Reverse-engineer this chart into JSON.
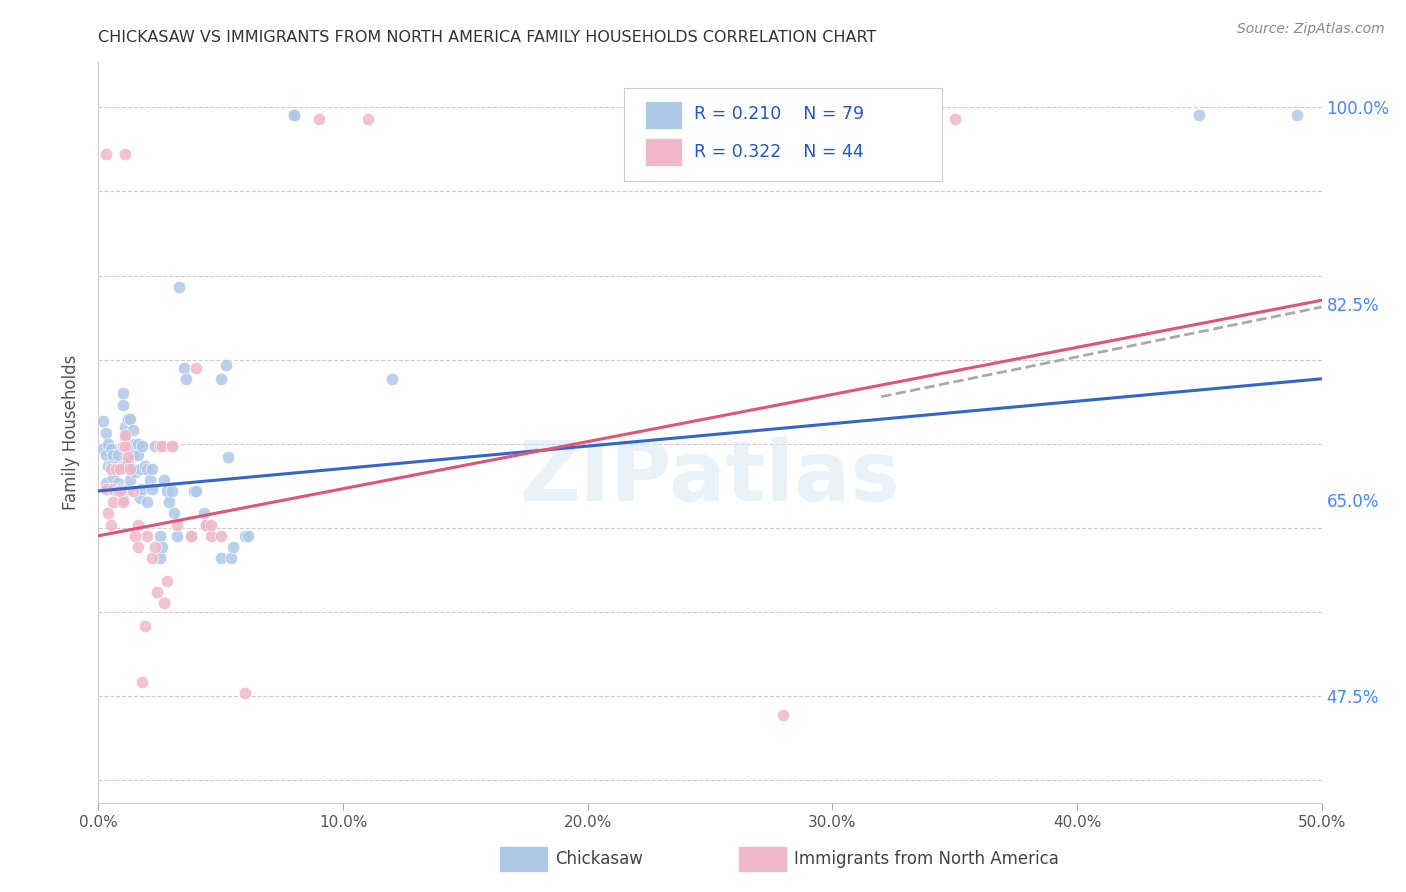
{
  "title": "CHICKASAW VS IMMIGRANTS FROM NORTH AMERICA FAMILY HOUSEHOLDS CORRELATION CHART",
  "source": "Source: ZipAtlas.com",
  "xlabel_ticks": [
    "0.0%",
    "10.0%",
    "20.0%",
    "30.0%",
    "40.0%",
    "50.0%"
  ],
  "ylabel": "Family Households",
  "xlim": [
    0.0,
    0.5
  ],
  "ylim": [
    0.38,
    1.04
  ],
  "right_yticks_labels": [
    "100.0%",
    "82.5%",
    "65.0%",
    "47.5%"
  ],
  "right_yticks_positions": [
    1.0,
    0.825,
    0.65,
    0.475
  ],
  "blue_color": "#aec8e8",
  "pink_color": "#f0b8c8",
  "marker_size": 80,
  "trendline_blue_color": "#3366cc",
  "trendline_pink_color": "#e05575",
  "trendline_gray_color": "#aaaaaa",
  "background_color": "#ffffff",
  "grid_color": "#cccccc",
  "blue_scatter": [
    [
      0.002,
      0.695
    ],
    [
      0.002,
      0.72
    ],
    [
      0.003,
      0.665
    ],
    [
      0.003,
      0.69
    ],
    [
      0.003,
      0.71
    ],
    [
      0.004,
      0.66
    ],
    [
      0.004,
      0.68
    ],
    [
      0.004,
      0.7
    ],
    [
      0.005,
      0.66
    ],
    [
      0.005,
      0.68
    ],
    [
      0.005,
      0.695
    ],
    [
      0.006,
      0.67
    ],
    [
      0.006,
      0.69
    ],
    [
      0.007,
      0.66
    ],
    [
      0.007,
      0.68
    ],
    [
      0.008,
      0.665
    ],
    [
      0.008,
      0.69
    ],
    [
      0.009,
      0.66
    ],
    [
      0.01,
      0.65
    ],
    [
      0.01,
      0.68
    ],
    [
      0.01,
      0.735
    ],
    [
      0.01,
      0.745
    ],
    [
      0.011,
      0.68
    ],
    [
      0.011,
      0.705
    ],
    [
      0.011,
      0.715
    ],
    [
      0.012,
      0.66
    ],
    [
      0.012,
      0.685
    ],
    [
      0.012,
      0.695
    ],
    [
      0.012,
      0.722
    ],
    [
      0.013,
      0.668
    ],
    [
      0.013,
      0.7
    ],
    [
      0.013,
      0.722
    ],
    [
      0.014,
      0.678
    ],
    [
      0.014,
      0.69
    ],
    [
      0.014,
      0.712
    ],
    [
      0.015,
      0.675
    ],
    [
      0.015,
      0.7
    ],
    [
      0.016,
      0.69
    ],
    [
      0.016,
      0.7
    ],
    [
      0.017,
      0.652
    ],
    [
      0.017,
      0.678
    ],
    [
      0.018,
      0.66
    ],
    [
      0.018,
      0.698
    ],
    [
      0.019,
      0.68
    ],
    [
      0.02,
      0.648
    ],
    [
      0.02,
      0.678
    ],
    [
      0.021,
      0.668
    ],
    [
      0.022,
      0.66
    ],
    [
      0.022,
      0.678
    ],
    [
      0.023,
      0.698
    ],
    [
      0.025,
      0.598
    ],
    [
      0.025,
      0.618
    ],
    [
      0.026,
      0.608
    ],
    [
      0.027,
      0.668
    ],
    [
      0.028,
      0.658
    ],
    [
      0.029,
      0.648
    ],
    [
      0.03,
      0.658
    ],
    [
      0.031,
      0.638
    ],
    [
      0.032,
      0.618
    ],
    [
      0.033,
      0.84
    ],
    [
      0.035,
      0.768
    ],
    [
      0.036,
      0.758
    ],
    [
      0.038,
      0.618
    ],
    [
      0.039,
      0.658
    ],
    [
      0.04,
      0.658
    ],
    [
      0.043,
      0.638
    ],
    [
      0.044,
      0.628
    ],
    [
      0.05,
      0.758
    ],
    [
      0.05,
      0.598
    ],
    [
      0.052,
      0.77
    ],
    [
      0.053,
      0.688
    ],
    [
      0.054,
      0.598
    ],
    [
      0.055,
      0.608
    ],
    [
      0.06,
      0.618
    ],
    [
      0.061,
      0.618
    ],
    [
      0.08,
      0.993
    ],
    [
      0.08,
      0.993
    ],
    [
      0.12,
      0.758
    ],
    [
      0.45,
      0.993
    ],
    [
      0.49,
      0.993
    ]
  ],
  "pink_scatter": [
    [
      0.003,
      0.958
    ],
    [
      0.011,
      0.958
    ],
    [
      0.003,
      0.66
    ],
    [
      0.004,
      0.638
    ],
    [
      0.005,
      0.628
    ],
    [
      0.005,
      0.678
    ],
    [
      0.006,
      0.648
    ],
    [
      0.006,
      0.66
    ],
    [
      0.007,
      0.678
    ],
    [
      0.008,
      0.658
    ],
    [
      0.009,
      0.658
    ],
    [
      0.009,
      0.678
    ],
    [
      0.01,
      0.648
    ],
    [
      0.01,
      0.698
    ],
    [
      0.011,
      0.698
    ],
    [
      0.011,
      0.708
    ],
    [
      0.012,
      0.688
    ],
    [
      0.013,
      0.678
    ],
    [
      0.014,
      0.658
    ],
    [
      0.015,
      0.618
    ],
    [
      0.016,
      0.608
    ],
    [
      0.016,
      0.628
    ],
    [
      0.018,
      0.488
    ],
    [
      0.019,
      0.538
    ],
    [
      0.02,
      0.618
    ],
    [
      0.022,
      0.598
    ],
    [
      0.023,
      0.608
    ],
    [
      0.024,
      0.568
    ],
    [
      0.025,
      0.698
    ],
    [
      0.026,
      0.698
    ],
    [
      0.027,
      0.558
    ],
    [
      0.028,
      0.578
    ],
    [
      0.03,
      0.698
    ],
    [
      0.03,
      0.698
    ],
    [
      0.032,
      0.628
    ],
    [
      0.038,
      0.618
    ],
    [
      0.04,
      0.768
    ],
    [
      0.044,
      0.628
    ],
    [
      0.046,
      0.618
    ],
    [
      0.046,
      0.628
    ],
    [
      0.05,
      0.618
    ],
    [
      0.06,
      0.478
    ],
    [
      0.09,
      0.99
    ],
    [
      0.11,
      0.99
    ],
    [
      0.28,
      0.458
    ],
    [
      0.35,
      0.99
    ]
  ],
  "blue_trendline_x": [
    0.0,
    0.5
  ],
  "blue_trendline_y": [
    0.658,
    0.758
  ],
  "pink_trendline_x": [
    0.0,
    0.5
  ],
  "pink_trendline_y": [
    0.618,
    0.828
  ],
  "gray_trendline_x": [
    0.32,
    0.5
  ],
  "gray_trendline_y": [
    0.742,
    0.822
  ]
}
